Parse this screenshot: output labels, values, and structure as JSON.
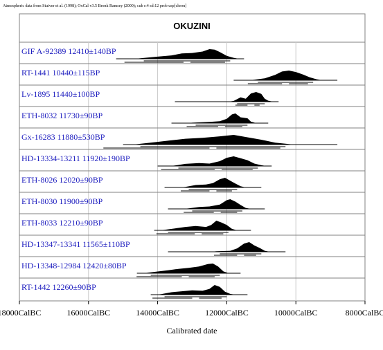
{
  "caption": "Atmospheric data from Stuiver et al. (1998); OxCal v3.5 Bronk Ramsey (2000); cub r:4 sd:12 prob usp[chron]",
  "chart_data": {
    "type": "multiplot",
    "title": "OKUZINI",
    "xlabel": "Calibrated date",
    "x_reversed": true,
    "xlim": [
      18000,
      8000
    ],
    "ticks": [
      {
        "value": 18000,
        "label": "18000CalBC"
      },
      {
        "value": 16000,
        "label": "16000CalBC"
      },
      {
        "value": 14000,
        "label": "14000CalBC"
      },
      {
        "value": 12000,
        "label": "12000CalBC"
      },
      {
        "value": 10000,
        "label": "10000CalBC"
      },
      {
        "value": 8000,
        "label": "8000CalBC"
      }
    ],
    "samples": [
      {
        "label": "GIF A-92389  12410±140BP",
        "range": [
          15200,
          11500
        ],
        "peaks": [
          [
            14500,
            0.06
          ],
          [
            14000,
            0.22
          ],
          [
            13600,
            0.35
          ],
          [
            13300,
            0.55
          ],
          [
            13000,
            0.6
          ],
          [
            12700,
            0.75
          ],
          [
            12500,
            1.0
          ],
          [
            12350,
            0.95
          ],
          [
            12200,
            0.7
          ],
          [
            12000,
            0.3
          ],
          [
            11800,
            0.1
          ]
        ]
      },
      {
        "label": "RT-1441  10440±115BP",
        "range": [
          11800,
          8800
        ],
        "peaks": [
          [
            11200,
            0.05
          ],
          [
            10900,
            0.2
          ],
          [
            10600,
            0.55
          ],
          [
            10400,
            0.9
          ],
          [
            10200,
            1.0
          ],
          [
            10000,
            0.85
          ],
          [
            9800,
            0.6
          ],
          [
            9600,
            0.3
          ],
          [
            9400,
            0.1
          ]
        ]
      },
      {
        "label": "Lv-1895  11440±100BP",
        "range": [
          13500,
          10500
        ],
        "peaks": [
          [
            11800,
            0.08
          ],
          [
            11600,
            0.45
          ],
          [
            11450,
            0.3
          ],
          [
            11300,
            0.85
          ],
          [
            11150,
            1.0
          ],
          [
            11000,
            0.8
          ],
          [
            10900,
            0.3
          ],
          [
            10800,
            0.1
          ]
        ]
      },
      {
        "label": "ETH-8032  11730±90BP",
        "range": [
          13600,
          10800
        ],
        "peaks": [
          [
            13000,
            0.04
          ],
          [
            12500,
            0.12
          ],
          [
            12200,
            0.2
          ],
          [
            12000,
            0.45
          ],
          [
            11850,
            0.9
          ],
          [
            11750,
            1.0
          ],
          [
            11600,
            0.6
          ],
          [
            11400,
            0.5
          ],
          [
            11300,
            0.15
          ]
        ]
      },
      {
        "label": "Gx-16283  11880±530BP",
        "range": [
          15000,
          8800
        ],
        "peaks": [
          [
            14600,
            0.04
          ],
          [
            14200,
            0.2
          ],
          [
            13700,
            0.4
          ],
          [
            13200,
            0.6
          ],
          [
            12700,
            0.7
          ],
          [
            12200,
            0.85
          ],
          [
            11800,
            1.0
          ],
          [
            11400,
            0.75
          ],
          [
            11000,
            0.5
          ],
          [
            10600,
            0.2
          ],
          [
            10200,
            0.06
          ]
        ]
      },
      {
        "label": "HD-13334-13211  11920±190BP",
        "range": [
          14000,
          10700
        ],
        "peaks": [
          [
            13500,
            0.05
          ],
          [
            13200,
            0.22
          ],
          [
            12800,
            0.3
          ],
          [
            12500,
            0.25
          ],
          [
            12200,
            0.5
          ],
          [
            12000,
            0.85
          ],
          [
            11800,
            1.0
          ],
          [
            11600,
            0.8
          ],
          [
            11400,
            0.6
          ],
          [
            11200,
            0.25
          ],
          [
            11000,
            0.08
          ]
        ]
      },
      {
        "label": "ETH-8026  12020±90BP",
        "range": [
          13800,
          11000
        ],
        "peaks": [
          [
            13200,
            0.06
          ],
          [
            12900,
            0.25
          ],
          [
            12600,
            0.3
          ],
          [
            12400,
            0.45
          ],
          [
            12200,
            0.85
          ],
          [
            12050,
            1.0
          ],
          [
            11900,
            0.7
          ],
          [
            11750,
            0.4
          ],
          [
            11600,
            0.12
          ]
        ]
      },
      {
        "label": "ETH-8030  11900±90BP",
        "range": [
          13700,
          10900
        ],
        "peaks": [
          [
            13100,
            0.05
          ],
          [
            12800,
            0.2
          ],
          [
            12500,
            0.25
          ],
          [
            12200,
            0.45
          ],
          [
            12000,
            0.9
          ],
          [
            11900,
            1.0
          ],
          [
            11750,
            0.75
          ],
          [
            11600,
            0.4
          ],
          [
            11450,
            0.1
          ]
        ]
      },
      {
        "label": "ETH-8033  12210±90BP",
        "range": [
          14100,
          11300
        ],
        "peaks": [
          [
            13800,
            0.05
          ],
          [
            13500,
            0.2
          ],
          [
            13200,
            0.35
          ],
          [
            12900,
            0.45
          ],
          [
            12600,
            0.35
          ],
          [
            12450,
            0.55
          ],
          [
            12300,
            1.0
          ],
          [
            12150,
            0.8
          ],
          [
            12000,
            0.55
          ],
          [
            11850,
            0.15
          ]
        ]
      },
      {
        "label": "HD-13347-13341  11565±110BP",
        "range": [
          13700,
          10300
        ],
        "peaks": [
          [
            12300,
            0.05
          ],
          [
            11900,
            0.1
          ],
          [
            11700,
            0.35
          ],
          [
            11500,
            0.85
          ],
          [
            11350,
            1.0
          ],
          [
            11200,
            0.65
          ],
          [
            11050,
            0.4
          ],
          [
            10900,
            0.1
          ]
        ]
      },
      {
        "label": "HD-13348-12984  12420±80BP",
        "range": [
          14600,
          11600
        ],
        "peaks": [
          [
            14300,
            0.04
          ],
          [
            14000,
            0.18
          ],
          [
            13700,
            0.3
          ],
          [
            13400,
            0.45
          ],
          [
            13100,
            0.55
          ],
          [
            12800,
            0.7
          ],
          [
            12550,
            0.95
          ],
          [
            12400,
            1.0
          ],
          [
            12250,
            0.7
          ],
          [
            12100,
            0.2
          ]
        ]
      },
      {
        "label": "RT-1442  12260±90BP",
        "range": [
          14200,
          11400
        ],
        "peaks": [
          [
            13900,
            0.06
          ],
          [
            13600,
            0.25
          ],
          [
            13300,
            0.35
          ],
          [
            13000,
            0.45
          ],
          [
            12700,
            0.4
          ],
          [
            12500,
            0.6
          ],
          [
            12350,
            1.0
          ],
          [
            12200,
            0.8
          ],
          [
            12050,
            0.3
          ],
          [
            11900,
            0.08
          ]
        ]
      }
    ]
  }
}
